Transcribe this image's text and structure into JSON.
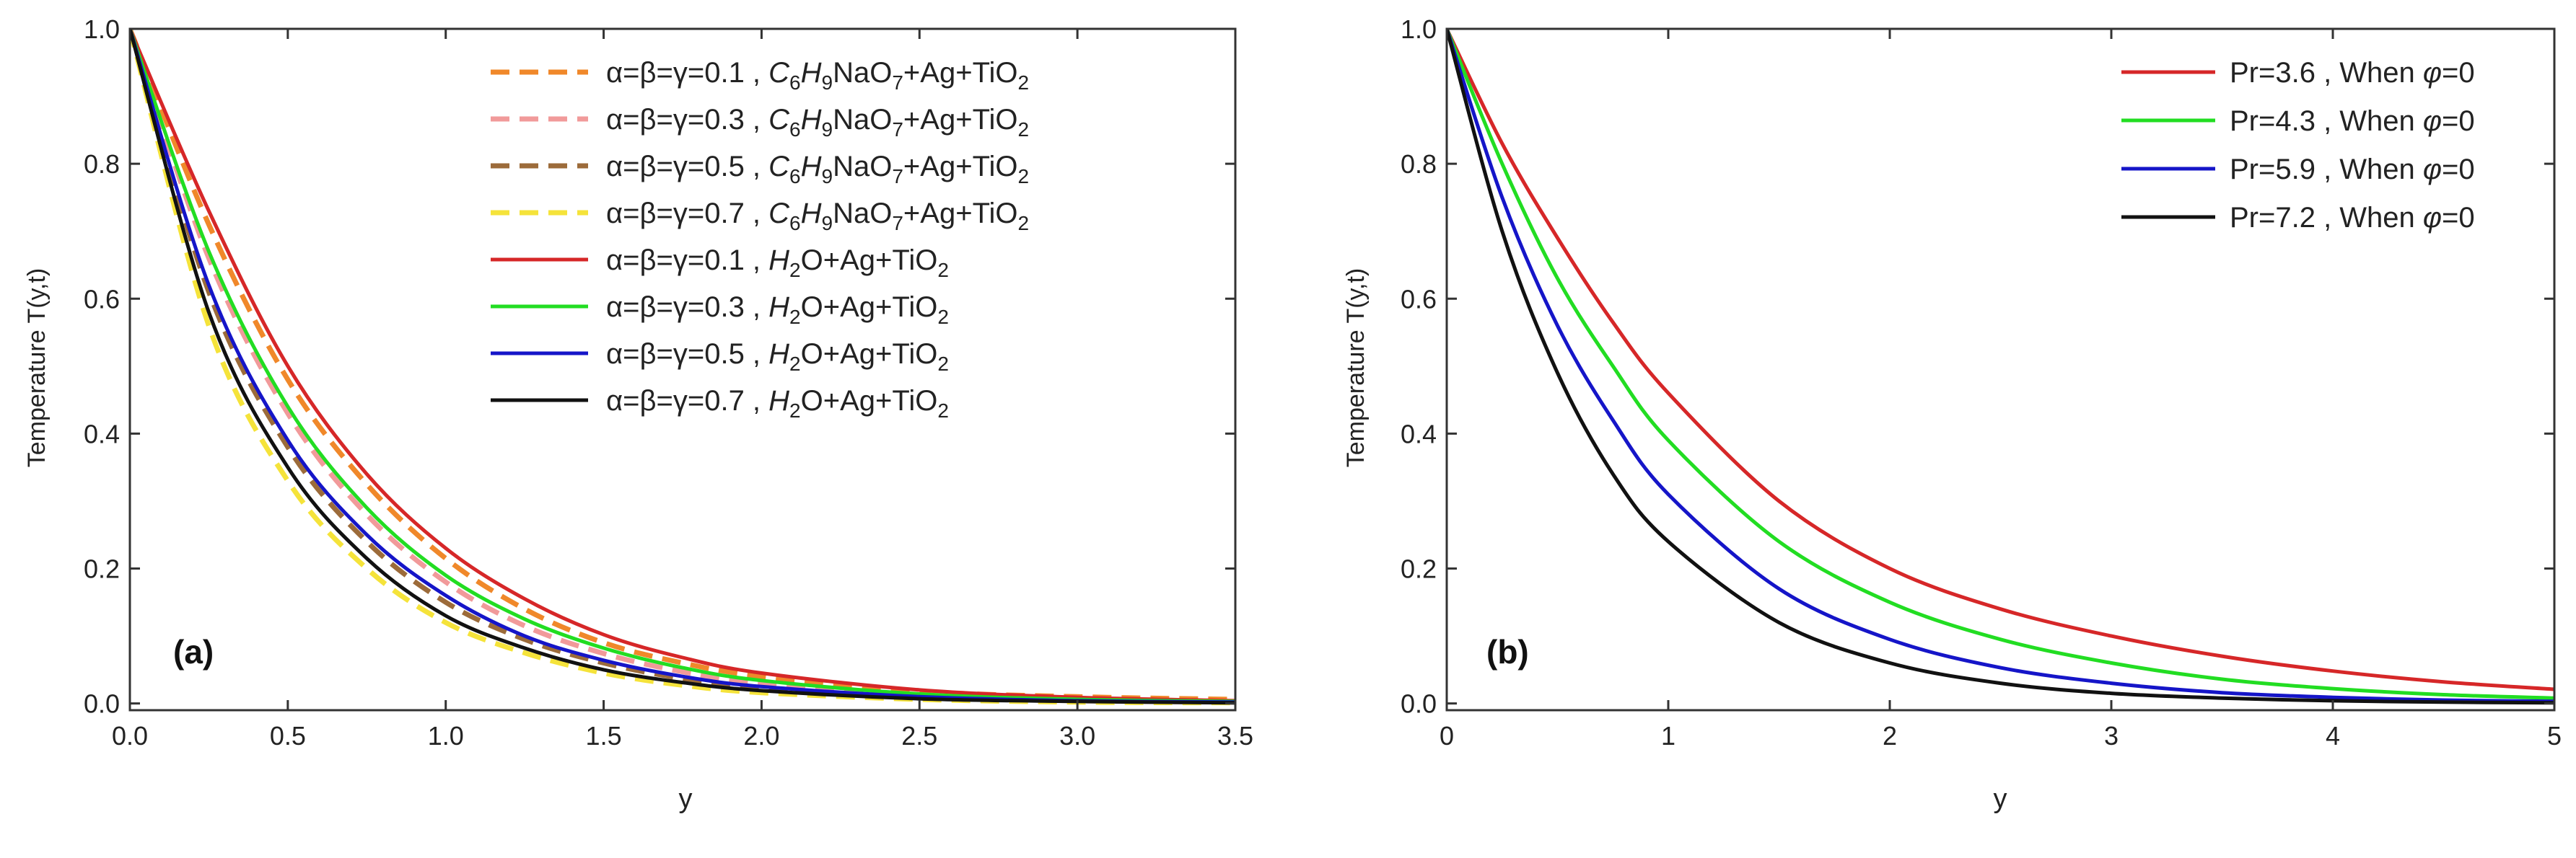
{
  "chart_data": [
    {
      "type": "line",
      "panel_label": "(a)",
      "xlabel": "y",
      "ylabel": "Temperature T(y,t)",
      "xlim": [
        0,
        3.5
      ],
      "ylim": [
        -0.01,
        1.0
      ],
      "xticks": [
        "0.0",
        "0.5",
        "1.0",
        "1.5",
        "2.0",
        "2.5",
        "3.0",
        "3.5"
      ],
      "yticks": [
        "0.0",
        "0.2",
        "0.4",
        "0.6",
        "0.8",
        "1.0"
      ],
      "x": [
        0.0,
        0.25,
        0.5,
        0.75,
        1.0,
        1.25,
        1.5,
        1.75,
        2.0,
        2.5,
        3.0,
        3.5
      ],
      "legend_position": "top-right",
      "series": [
        {
          "name_parts": [
            [
              "α=β=γ=0.1 , ",
              ""
            ],
            [
              "C",
              "i"
            ],
            [
              "6",
              "sub"
            ],
            [
              "H",
              "i"
            ],
            [
              "9",
              "sub"
            ],
            [
              "NaO",
              ""
            ],
            [
              "7",
              "sub"
            ],
            [
              "+Ag+TiO",
              ""
            ],
            [
              "2",
              "sub"
            ]
          ],
          "color": "#f0882a",
          "dash": true,
          "values": [
            1.0,
            0.71,
            0.48,
            0.325,
            0.215,
            0.14,
            0.09,
            0.06,
            0.04,
            0.018,
            0.01,
            0.006
          ]
        },
        {
          "name_parts": [
            [
              "α=β=γ=0.3 , ",
              ""
            ],
            [
              "C",
              "i"
            ],
            [
              "6",
              "sub"
            ],
            [
              "H",
              "i"
            ],
            [
              "9",
              "sub"
            ],
            [
              "NaO",
              ""
            ],
            [
              "7",
              "sub"
            ],
            [
              "+Ag+TiO",
              ""
            ],
            [
              "2",
              "sub"
            ]
          ],
          "color": "#f19a9a",
          "dash": true,
          "values": [
            1.0,
            0.66,
            0.43,
            0.28,
            0.18,
            0.115,
            0.074,
            0.047,
            0.03,
            0.013,
            0.006,
            0.003
          ]
        },
        {
          "name_parts": [
            [
              "α=β=γ=0.5 , ",
              ""
            ],
            [
              "C",
              "i"
            ],
            [
              "6",
              "sub"
            ],
            [
              "H",
              "i"
            ],
            [
              "9",
              "sub"
            ],
            [
              "NaO",
              ""
            ],
            [
              "7",
              "sub"
            ],
            [
              "+Ag+TiO",
              ""
            ],
            [
              "2",
              "sub"
            ]
          ],
          "color": "#9c6b3a",
          "dash": true,
          "values": [
            1.0,
            0.61,
            0.38,
            0.24,
            0.15,
            0.095,
            0.06,
            0.037,
            0.023,
            0.009,
            0.004,
            0.002
          ]
        },
        {
          "name_parts": [
            [
              "α=β=γ=0.7 , ",
              ""
            ],
            [
              "C",
              "i"
            ],
            [
              "6",
              "sub"
            ],
            [
              "H",
              "i"
            ],
            [
              "9",
              "sub"
            ],
            [
              "NaO",
              ""
            ],
            [
              "7",
              "sub"
            ],
            [
              "+Ag+TiO",
              ""
            ],
            [
              "2",
              "sub"
            ]
          ],
          "color": "#f5e33a",
          "dash": true,
          "values": [
            1.0,
            0.56,
            0.33,
            0.2,
            0.12,
            0.075,
            0.045,
            0.027,
            0.016,
            0.006,
            0.002,
            0.001
          ]
        },
        {
          "name_parts": [
            [
              "α=β=γ=0.1 , ",
              ""
            ],
            [
              "H",
              "i"
            ],
            [
              "2",
              "sub"
            ],
            [
              "O+Ag+TiO",
              ""
            ],
            [
              "2",
              "sub"
            ]
          ],
          "color": "#d62728",
          "dash": false,
          "values": [
            1.0,
            0.73,
            0.5,
            0.34,
            0.23,
            0.155,
            0.102,
            0.068,
            0.045,
            0.02,
            0.009,
            0.004
          ]
        },
        {
          "name_parts": [
            [
              "α=β=γ=0.3 , ",
              ""
            ],
            [
              "H",
              "i"
            ],
            [
              "2",
              "sub"
            ],
            [
              "O+Ag+TiO",
              ""
            ],
            [
              "2",
              "sub"
            ]
          ],
          "color": "#22dd22",
          "dash": false,
          "values": [
            1.0,
            0.67,
            0.44,
            0.29,
            0.19,
            0.125,
            0.082,
            0.053,
            0.034,
            0.014,
            0.006,
            0.003
          ]
        },
        {
          "name_parts": [
            [
              "α=β=γ=0.5 , ",
              ""
            ],
            [
              "H",
              "i"
            ],
            [
              "2",
              "sub"
            ],
            [
              "O+Ag+TiO",
              ""
            ],
            [
              "2",
              "sub"
            ]
          ],
          "color": "#1515c8",
          "dash": false,
          "values": [
            1.0,
            0.62,
            0.39,
            0.25,
            0.16,
            0.1,
            0.064,
            0.04,
            0.025,
            0.01,
            0.004,
            0.002
          ]
        },
        {
          "name_parts": [
            [
              "α=β=γ=0.7 , ",
              ""
            ],
            [
              "H",
              "i"
            ],
            [
              "2",
              "sub"
            ],
            [
              "O+Ag+TiO",
              ""
            ],
            [
              "2",
              "sub"
            ]
          ],
          "color": "#111111",
          "dash": false,
          "values": [
            1.0,
            0.58,
            0.35,
            0.215,
            0.13,
            0.082,
            0.05,
            0.031,
            0.019,
            0.007,
            0.003,
            0.001
          ]
        }
      ]
    },
    {
      "type": "line",
      "panel_label": "(b)",
      "xlabel": "y",
      "ylabel": "Temperature T(y,t)",
      "xlim": [
        0,
        5
      ],
      "ylim": [
        -0.01,
        1.0
      ],
      "xticks": [
        "0",
        "1",
        "2",
        "3",
        "4",
        "5"
      ],
      "yticks": [
        "0.0",
        "0.2",
        "0.4",
        "0.6",
        "0.8",
        "1.0"
      ],
      "x": [
        0.0,
        0.25,
        0.5,
        0.75,
        1.0,
        1.5,
        2.0,
        2.5,
        3.0,
        3.5,
        4.0,
        4.5,
        5.0
      ],
      "legend_position": "top-right",
      "series": [
        {
          "name_parts": [
            [
              "Pr=3.6 , When ",
              ""
            ],
            [
              "φ",
              "i"
            ],
            [
              "=0",
              ""
            ]
          ],
          "color": "#d62728",
          "dash": false,
          "values": [
            1.0,
            0.83,
            0.69,
            0.565,
            0.46,
            0.3,
            0.2,
            0.14,
            0.1,
            0.07,
            0.048,
            0.032,
            0.021
          ]
        },
        {
          "name_parts": [
            [
              "Pr=4.3 , When ",
              ""
            ],
            [
              "φ",
              "i"
            ],
            [
              "=0",
              ""
            ]
          ],
          "color": "#22dd22",
          "dash": false,
          "values": [
            1.0,
            0.8,
            0.63,
            0.5,
            0.39,
            0.24,
            0.15,
            0.095,
            0.06,
            0.036,
            0.022,
            0.013,
            0.008
          ]
        },
        {
          "name_parts": [
            [
              "Pr=5.9 , When ",
              ""
            ],
            [
              "φ",
              "i"
            ],
            [
              "=0",
              ""
            ]
          ],
          "color": "#1515c8",
          "dash": false,
          "values": [
            1.0,
            0.75,
            0.56,
            0.42,
            0.31,
            0.17,
            0.095,
            0.053,
            0.03,
            0.016,
            0.009,
            0.005,
            0.003
          ]
        },
        {
          "name_parts": [
            [
              "Pr=7.2 , When ",
              ""
            ],
            [
              "φ",
              "i"
            ],
            [
              "=0",
              ""
            ]
          ],
          "color": "#111111",
          "dash": false,
          "values": [
            1.0,
            0.7,
            0.49,
            0.34,
            0.24,
            0.12,
            0.06,
            0.03,
            0.015,
            0.008,
            0.004,
            0.002,
            0.001
          ]
        }
      ]
    }
  ]
}
